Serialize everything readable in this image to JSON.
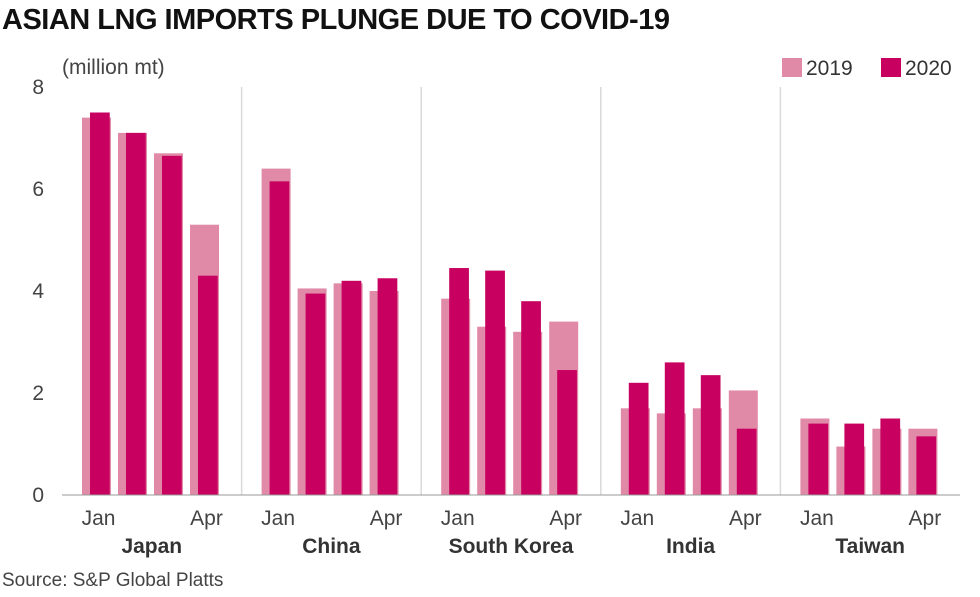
{
  "chart_data": {
    "type": "bar",
    "title": "ASIAN LNG IMPORTS PLUNGE DUE TO COVID-19",
    "unit_label": "(million mt)",
    "ylim": [
      0,
      8
    ],
    "y_ticks": [
      "0",
      "2",
      "4",
      "6",
      "8"
    ],
    "grid": "vertical separators between countries",
    "legend_position": "top-right",
    "month_tick_labels": [
      "Jan",
      "Apr"
    ],
    "series": [
      {
        "name": "2019",
        "color": "#e08aa8"
      },
      {
        "name": "2020",
        "color": "#c8005f"
      }
    ],
    "groups": [
      {
        "name": "Japan",
        "values_2019": [
          7.4,
          7.1,
          6.7,
          5.3
        ],
        "values_2020": [
          7.5,
          7.1,
          6.65,
          4.3
        ]
      },
      {
        "name": "China",
        "values_2019": [
          6.4,
          4.05,
          4.15,
          4.0
        ],
        "values_2020": [
          6.15,
          3.95,
          4.2,
          4.25
        ]
      },
      {
        "name": "South Korea",
        "values_2019": [
          3.85,
          3.3,
          3.2,
          3.4
        ],
        "values_2020": [
          4.45,
          4.4,
          3.8,
          2.45
        ]
      },
      {
        "name": "India",
        "values_2019": [
          1.7,
          1.6,
          1.7,
          2.05
        ],
        "values_2020": [
          2.2,
          2.6,
          2.35,
          1.3
        ]
      },
      {
        "name": "Taiwan",
        "values_2019": [
          1.5,
          0.95,
          1.3,
          1.3
        ],
        "values_2020": [
          1.4,
          1.4,
          1.5,
          1.15
        ]
      }
    ]
  },
  "source": "Source: S&P Global Platts"
}
